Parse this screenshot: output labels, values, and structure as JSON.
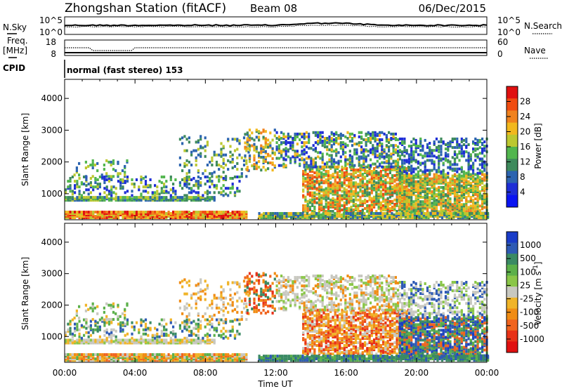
{
  "header": {
    "station": "Zhongshan Station (fitACF)",
    "beam": "Beam 08",
    "date": "06/Dec/2015"
  },
  "top_panels": {
    "nsky_label": "N.Sky",
    "nsky_ticks": [
      "10^5",
      "10^0"
    ],
    "nsearch_label": "N.Search",
    "nsearch_ticks": [
      "10^5",
      "10^0"
    ],
    "freq_label": "Freq.",
    "freq_unit": "[MHz]",
    "freq_ticks": [
      "18",
      "8"
    ],
    "nave_label": "Nave",
    "nave_ticks": [
      "60",
      "0"
    ],
    "cpid_label": "CPID",
    "cpid_value": "normal (fast stereo) 153"
  },
  "chart_data": [
    {
      "type": "heatmap",
      "name": "power",
      "ylabel": "Slant Range [km]",
      "xlabel": "Time UT",
      "x_ticks": [
        "00:00",
        "04:00",
        "08:00",
        "12:00",
        "16:00",
        "20:00",
        "00:00"
      ],
      "xlim_hours": [
        0,
        24
      ],
      "y_ticks": [
        1000,
        2000,
        3000,
        4000
      ],
      "ylim": [
        180,
        4600
      ],
      "colorbar": {
        "label": "Power [dB]",
        "ticks": [
          "28",
          "24",
          "20",
          "16",
          "12",
          "8",
          "4"
        ],
        "colors": [
          "#e01010",
          "#f04c10",
          "#f0821e",
          "#f2b81e",
          "#bcc830",
          "#52b64e",
          "#3e8a5c",
          "#2c64b0",
          "#1e2ed6",
          "#0a14f2"
        ]
      }
    },
    {
      "type": "heatmap",
      "name": "velocity",
      "ylabel": "Slant Range [km]",
      "xlabel": "Time UT",
      "x_ticks": [
        "00:00",
        "04:00",
        "08:00",
        "12:00",
        "16:00",
        "20:00",
        "00:00"
      ],
      "xlim_hours": [
        0,
        24
      ],
      "y_ticks": [
        1000,
        2000,
        3000,
        4000
      ],
      "ylim": [
        180,
        4600
      ],
      "colorbar": {
        "label": "Velocity",
        "unit": "[m s",
        "unit_exp": "-1",
        "unit_close": "]",
        "ticks": [
          "1000",
          "500",
          "100",
          "25",
          "-25",
          "-100",
          "-500",
          "-1000"
        ],
        "colors": [
          "#1a3cc8",
          "#2e5ab4",
          "#3a8a64",
          "#5cb04a",
          "#8ac648",
          "#c8c8c0",
          "#f0b428",
          "#f08c14",
          "#f0641e",
          "#e83218",
          "#e01010"
        ]
      }
    }
  ],
  "xlabel": "Time UT"
}
